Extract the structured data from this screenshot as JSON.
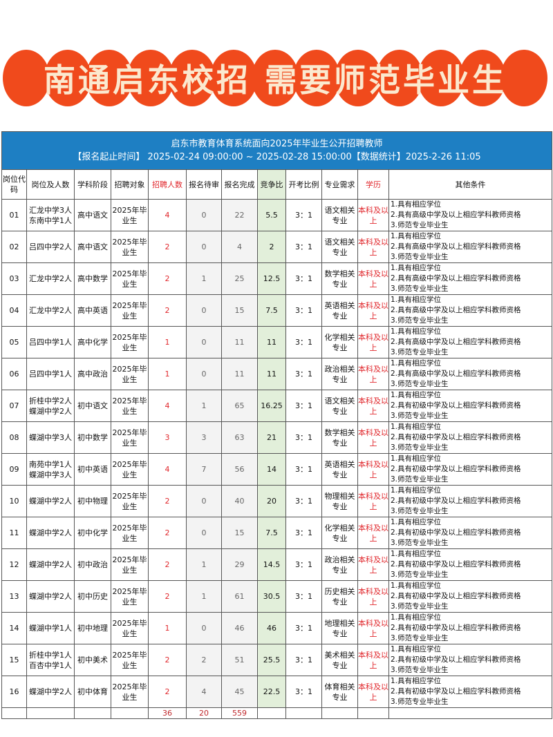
{
  "banner": {
    "text": "南通启东校招 需要师范毕业生",
    "color": "#f04a1c"
  },
  "table": {
    "title": "启东市教育体育系统面向2025年毕业生公开招聘教师",
    "subtitle": "【报名起止时间】 2025-02-24 09:00:00 ~ 2025-02-28 15:00:00【数据统计】2025-2-26 11:05",
    "headers": [
      "岗位代码",
      "岗位及人数",
      "学科阶段",
      "招聘对象",
      "招聘人数",
      "报名待审",
      "报名完成",
      "竞争比",
      "开考比例",
      "专业需求",
      "学历",
      "其他条件"
    ],
    "rows": [
      {
        "code": "01",
        "pos": "汇龙中学3人 东南中学1人",
        "subj": "高中语文",
        "target": "2025年毕业生",
        "num": "4",
        "pending": "0",
        "done": "22",
        "ratio": "5.5",
        "exam": "3：1",
        "major": "语文相关专业",
        "edu": "本科及以上",
        "cond": [
          "1.具有相应学位",
          "2.具有高级中学及以上相应学科教师资格",
          "3.师范专业毕业生"
        ]
      },
      {
        "code": "02",
        "pos": "吕四中学2人",
        "subj": "高中语文",
        "target": "2025年毕业生",
        "num": "2",
        "pending": "0",
        "done": "4",
        "ratio": "2",
        "exam": "3：1",
        "major": "语文相关专业",
        "edu": "本科及以上",
        "cond": [
          "1.具有相应学位",
          "2.具有高级中学及以上相应学科教师资格",
          "3.师范专业毕业生"
        ]
      },
      {
        "code": "03",
        "pos": "汇龙中学2人",
        "subj": "高中数学",
        "target": "2025年毕业生",
        "num": "2",
        "pending": "1",
        "done": "25",
        "ratio": "12.5",
        "exam": "3：1",
        "major": "数学相关专业",
        "edu": "本科及以上",
        "cond": [
          "1.具有相应学位",
          "2.具有高级中学及以上相应学科教师资格",
          "3.师范专业毕业生"
        ]
      },
      {
        "code": "04",
        "pos": "汇龙中学2人",
        "subj": "高中英语",
        "target": "2025年毕业生",
        "num": "2",
        "pending": "0",
        "done": "15",
        "ratio": "7.5",
        "exam": "3：1",
        "major": "英语相关专业",
        "edu": "本科及以上",
        "cond": [
          "1.具有相应学位",
          "2.具有高级中学及以上相应学科教师资格",
          "3.师范专业毕业生"
        ]
      },
      {
        "code": "05",
        "pos": "吕四中学1人",
        "subj": "高中化学",
        "target": "2025年毕业生",
        "num": "1",
        "pending": "0",
        "done": "11",
        "ratio": "11",
        "exam": "3：1",
        "major": "化学相关专业",
        "edu": "本科及以上",
        "cond": [
          "1.具有相应学位",
          "2.具有高级中学及以上相应学科教师资格",
          "3.师范专业毕业生"
        ]
      },
      {
        "code": "06",
        "pos": "吕四中学1人",
        "subj": "高中政治",
        "target": "2025年毕业生",
        "num": "1",
        "pending": "0",
        "done": "11",
        "ratio": "11",
        "exam": "3：1",
        "major": "政治相关专业",
        "edu": "本科及以上",
        "cond": [
          "1.具有相应学位",
          "2.具有高级中学及以上相应学科教师资格",
          "3.师范专业毕业生"
        ]
      },
      {
        "code": "07",
        "pos": "折桂中学2人 蝶湖中学2人",
        "subj": "初中语文",
        "target": "2025年毕业生",
        "num": "4",
        "pending": "1",
        "done": "65",
        "ratio": "16.25",
        "exam": "3：1",
        "major": "语文相关专业",
        "edu": "本科及以上",
        "cond": [
          "1.具有相应学位",
          "2.具有初级中学及以上相应学科教师资格",
          "3.师范专业毕业生"
        ]
      },
      {
        "code": "08",
        "pos": "蝶湖中学3人",
        "subj": "初中数学",
        "target": "2025年毕业生",
        "num": "3",
        "pending": "3",
        "done": "63",
        "ratio": "21",
        "exam": "3：1",
        "major": "数学相关专业",
        "edu": "本科及以上",
        "cond": [
          "1.具有相应学位",
          "2.具有初级中学及以上相应学科教师资格",
          "3.师范专业毕业生"
        ]
      },
      {
        "code": "09",
        "pos": "南苑中学1人 蝶湖中学3人",
        "subj": "初中英语",
        "target": "2025年毕业生",
        "num": "4",
        "pending": "7",
        "done": "56",
        "ratio": "14",
        "exam": "3：1",
        "major": "英语相关专业",
        "edu": "本科及以上",
        "cond": [
          "1.具有相应学位",
          "2.具有初级中学及以上相应学科教师资格",
          "3.师范专业毕业生"
        ]
      },
      {
        "code": "10",
        "pos": "蝶湖中学2人",
        "subj": "初中物理",
        "target": "2025年毕业生",
        "num": "2",
        "pending": "0",
        "done": "40",
        "ratio": "20",
        "exam": "3：1",
        "major": "物理相关专业",
        "edu": "本科及以上",
        "cond": [
          "1.具有相应学位",
          "2.具有初级中学及以上相应学科教师资格",
          "3.师范专业毕业生"
        ]
      },
      {
        "code": "11",
        "pos": "蝶湖中学2人",
        "subj": "初中化学",
        "target": "2025年毕业生",
        "num": "2",
        "pending": "0",
        "done": "15",
        "ratio": "7.5",
        "exam": "3：1",
        "major": "化学相关专业",
        "edu": "本科及以上",
        "cond": [
          "1.具有相应学位",
          "2.具有初级中学及以上相应学科教师资格",
          "3.师范专业毕业生"
        ]
      },
      {
        "code": "12",
        "pos": "蝶湖中学2人",
        "subj": "初中政治",
        "target": "2025年毕业生",
        "num": "2",
        "pending": "1",
        "done": "29",
        "ratio": "14.5",
        "exam": "3：1",
        "major": "政治相关专业",
        "edu": "本科及以上",
        "cond": [
          "1.具有相应学位",
          "2.具有初级中学及以上相应学科教师资格",
          "3.师范专业毕业生"
        ]
      },
      {
        "code": "13",
        "pos": "蝶湖中学2人",
        "subj": "初中历史",
        "target": "2025年毕业生",
        "num": "2",
        "pending": "1",
        "done": "61",
        "ratio": "30.5",
        "exam": "3：1",
        "major": "历史相关专业",
        "edu": "本科及以上",
        "cond": [
          "1.具有相应学位",
          "2.具有初级中学及以上相应学科教师资格",
          "3.师范专业毕业生"
        ]
      },
      {
        "code": "14",
        "pos": "蝶湖中学1人",
        "subj": "初中地理",
        "target": "2025年毕业生",
        "num": "1",
        "pending": "0",
        "done": "46",
        "ratio": "46",
        "exam": "3：1",
        "major": "地理相关专业",
        "edu": "本科及以上",
        "cond": [
          "1.具有相应学位",
          "2.具有初级中学及以上相应学科教师资格",
          "3.师范专业毕业生"
        ]
      },
      {
        "code": "15",
        "pos": "折桂中学1人 百杏中学1人",
        "subj": "初中美术",
        "target": "2025年毕业生",
        "num": "2",
        "pending": "2",
        "done": "51",
        "ratio": "25.5",
        "exam": "3：1",
        "major": "美术相关专业",
        "edu": "本科及以上",
        "cond": [
          "1.具有相应学位",
          "2.具有初级中学及以上相应学科教师资格",
          "3.师范专业毕业生"
        ]
      },
      {
        "code": "16",
        "pos": "蝶湖中学2人",
        "subj": "初中体育",
        "target": "2025年毕业生",
        "num": "2",
        "pending": "4",
        "done": "45",
        "ratio": "22.5",
        "exam": "3：1",
        "major": "体育相关专业",
        "edu": "本科及以上",
        "cond": [
          "1.具有相应学位",
          "2.具有初级中学及以上相应学科教师资格",
          "3.师范专业毕业生"
        ]
      }
    ],
    "totals": {
      "num": "36",
      "pending": "20",
      "done": "559"
    }
  }
}
